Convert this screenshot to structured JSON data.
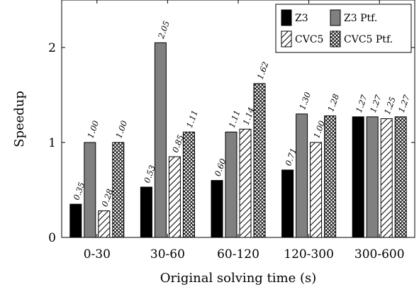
{
  "chart_data": {
    "type": "bar",
    "title": "",
    "xlabel": "Original solving time (s)",
    "ylabel": "Speedup",
    "categories": [
      "0-30",
      "30-60",
      "60-120",
      "120-300",
      "300-600"
    ],
    "ylim": [
      0,
      2.5
    ],
    "yticks": [
      0,
      1,
      2
    ],
    "grid": false,
    "legend_position": "top-right",
    "series": [
      {
        "name": "Z3",
        "values": [
          0.35,
          0.53,
          0.6,
          0.71,
          1.27
        ],
        "labels": [
          "0.35",
          "0.53",
          "0.60",
          "0.71",
          "1.27"
        ],
        "color": "#000000",
        "pattern": "solid"
      },
      {
        "name": "Z3 Ptf.",
        "values": [
          1.0,
          2.05,
          1.11,
          1.3,
          1.27
        ],
        "labels": [
          "1.00",
          "2.05",
          "1.11",
          "1.30",
          "1.27"
        ],
        "color": "#808080",
        "pattern": "solid"
      },
      {
        "name": "CVC5",
        "values": [
          0.28,
          0.85,
          1.14,
          1.0,
          1.25
        ],
        "labels": [
          "0.28",
          "0.85",
          "1.14",
          "1.00",
          "1.25"
        ],
        "color": "#000000",
        "pattern": "diagonal-lines"
      },
      {
        "name": "CVC5 Ptf.",
        "values": [
          1.0,
          1.11,
          1.62,
          1.28,
          1.27
        ],
        "labels": [
          "1.00",
          "1.11",
          "1.62",
          "1.28",
          "1.27"
        ],
        "color": "#000000",
        "pattern": "crosshatch"
      }
    ]
  }
}
